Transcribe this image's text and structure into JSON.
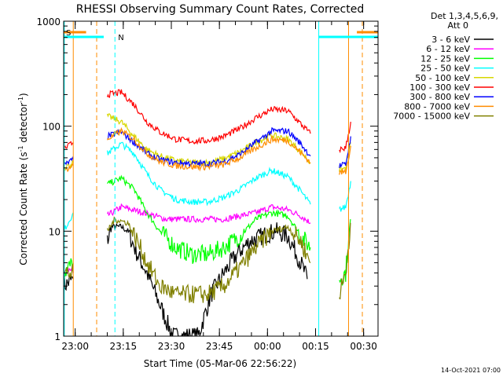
{
  "chart_data": {
    "type": "line",
    "title": "RHESSI Observing Summary Count Rates, Corrected",
    "xlabel": "Start Time (05-Mar-06 22:56:22)",
    "ylabel_parts": [
      "Corrected Count Rate (s",
      "-1",
      " detector",
      "-1",
      ")"
    ],
    "yscale": "log",
    "ylim": [
      1,
      1000
    ],
    "xlim": [
      "22:56:22",
      "00:34:30"
    ],
    "y_ticks": [
      {
        "label": "1",
        "value": 1
      },
      {
        "label": "10",
        "value": 10
      },
      {
        "label": "100",
        "value": 100
      },
      {
        "label": "1000",
        "value": 1000
      }
    ],
    "x_ticks": [
      {
        "label": "23:00",
        "t": 3.6
      },
      {
        "label": "23:15",
        "t": 18.6
      },
      {
        "label": "23:30",
        "t": 33.6
      },
      {
        "label": "23:45",
        "t": 48.6
      },
      {
        "label": "00:00",
        "t": 63.6
      },
      {
        "label": "00:15",
        "t": 78.6
      },
      {
        "label": "00:30",
        "t": 93.6
      }
    ],
    "x_unit_note": "t = minutes after 22:56:22",
    "legend_header": [
      "Det 1,3,4,5,6,9,",
      "Att 0"
    ],
    "legend_position": "right, outside plot",
    "series": [
      {
        "name": "3 - 6 keV",
        "color": "#000000",
        "x": [
          0,
          3,
          3.1,
          10,
          13.6,
          15,
          18,
          20,
          23,
          26,
          30,
          34,
          38,
          42,
          46,
          50,
          54,
          58,
          62,
          66,
          70,
          74,
          76,
          77.5,
          78,
          79.9,
          80,
          85,
          87,
          89,
          89.6,
          90
        ],
        "y": [
          3,
          3.5,
          null,
          null,
          8,
          11,
          11,
          10,
          6,
          4,
          2,
          1,
          1,
          1,
          2.5,
          4,
          6,
          8,
          9,
          10,
          9,
          5,
          3.5,
          null,
          null,
          null,
          null,
          null,
          null,
          null,
          null,
          null
        ]
      },
      {
        "name": "6 - 12 keV",
        "color": "#ff00ff",
        "x": [
          0,
          3,
          3.1,
          10,
          13.6,
          18,
          25,
          32,
          40,
          45,
          50,
          55,
          60,
          65,
          70,
          74,
          77,
          80,
          82,
          86,
          88,
          89.6,
          91
        ],
        "y": [
          4,
          4,
          null,
          null,
          14,
          17,
          15,
          13,
          13,
          13,
          13,
          14,
          15,
          17,
          16,
          14,
          12,
          null,
          null,
          null,
          null,
          3,
          null
        ]
      },
      {
        "name": "12 - 25 keV",
        "color": "#00ff00",
        "x": [
          0,
          3,
          3.1,
          10,
          13.6,
          18,
          22,
          26,
          30,
          35,
          40,
          45,
          50,
          55,
          60,
          65,
          70,
          74,
          77,
          80,
          82,
          86,
          88,
          89.5,
          91
        ],
        "y": [
          4,
          5,
          null,
          null,
          28,
          32,
          25,
          15,
          10,
          7,
          6,
          6,
          7,
          9,
          13,
          15,
          14,
          9,
          7,
          null,
          null,
          3.5,
          4,
          13,
          null
        ]
      },
      {
        "name": "25 - 50 keV",
        "color": "#00ffff",
        "x": [
          0,
          3,
          3.1,
          10,
          13.6,
          18,
          22,
          26,
          30,
          35,
          40,
          45,
          50,
          55,
          60,
          65,
          70,
          74,
          77,
          80,
          82,
          86,
          88,
          89.6,
          91
        ],
        "y": [
          10,
          15,
          null,
          null,
          55,
          68,
          55,
          35,
          25,
          20,
          19,
          19,
          21,
          25,
          32,
          38,
          33,
          24,
          18,
          null,
          null,
          16,
          17,
          30,
          null
        ]
      },
      {
        "name": "50 - 100 keV",
        "color": "#d7d700",
        "x": [
          0,
          3,
          3.1,
          10,
          13.6,
          18,
          22,
          26,
          30,
          35,
          40,
          45,
          50,
          55,
          60,
          65,
          70,
          74,
          77,
          80,
          82,
          86,
          88,
          89.6,
          91
        ],
        "y": [
          40,
          45,
          null,
          null,
          125,
          110,
          80,
          60,
          52,
          47,
          45,
          45,
          49,
          57,
          70,
          82,
          75,
          57,
          45,
          null,
          null,
          38,
          40,
          70,
          null
        ]
      },
      {
        "name": "100 - 300 keV",
        "color": "#ff0000",
        "x": [
          0,
          3,
          3.1,
          10,
          13.6,
          18,
          22,
          26,
          30,
          35,
          40,
          45,
          50,
          55,
          60,
          65,
          70,
          74,
          77,
          80,
          82,
          86,
          88,
          89.6,
          91
        ],
        "y": [
          60,
          70,
          null,
          null,
          200,
          210,
          160,
          110,
          88,
          75,
          72,
          73,
          80,
          95,
          120,
          145,
          140,
          105,
          85,
          null,
          null,
          60,
          62,
          110,
          null
        ]
      },
      {
        "name": "300 - 800 keV",
        "color": "#0000ff",
        "x": [
          0,
          3,
          3.1,
          10,
          13.6,
          18,
          22,
          26,
          30,
          35,
          40,
          45,
          50,
          55,
          60,
          65,
          70,
          74,
          77,
          80,
          82,
          86,
          88,
          89.6,
          91
        ],
        "y": [
          42,
          48,
          null,
          null,
          80,
          88,
          70,
          55,
          48,
          45,
          44,
          44,
          46,
          54,
          70,
          90,
          90,
          68,
          52,
          null,
          null,
          42,
          43,
          80,
          null
        ]
      },
      {
        "name": "800 - 7000 keV",
        "color": "#ff8c00",
        "x": [
          0,
          3,
          3.1,
          10,
          13.6,
          18,
          22,
          26,
          30,
          35,
          40,
          45,
          50,
          55,
          60,
          65,
          70,
          74,
          77,
          80,
          82,
          86,
          88,
          89.6,
          91
        ],
        "y": [
          38,
          42,
          null,
          null,
          75,
          90,
          75,
          55,
          46,
          42,
          41,
          41,
          43,
          50,
          62,
          75,
          73,
          56,
          45,
          null,
          null,
          36,
          37,
          65,
          null
        ]
      },
      {
        "name": "7000 - 15000 keV",
        "color": "#808000",
        "x": [
          0,
          3,
          3.1,
          10,
          13.6,
          16,
          20,
          23,
          26,
          30,
          35,
          40,
          45,
          50,
          55,
          60,
          65,
          70,
          74,
          77,
          80,
          82,
          86,
          88,
          89.5,
          91
        ],
        "y": [
          4,
          4,
          null,
          null,
          10,
          13,
          12,
          8,
          5,
          3,
          2.5,
          2.5,
          2.5,
          3,
          4.5,
          7,
          10,
          11,
          8,
          5,
          null,
          null,
          2.5,
          4,
          12,
          null
        ]
      }
    ],
    "gap_markers": [
      {
        "label": "S",
        "color": "#ff8c00",
        "bar_start": 0,
        "bar_end": 7
      },
      {
        "label": "N",
        "color": "#00ffff",
        "bar_start": 0,
        "bar_end": 12.5
      }
    ],
    "end_markers": [
      {
        "color": "#00ffff",
        "bar_start": 79.5,
        "bar_end": 98
      },
      {
        "color": "#ff8c00",
        "bar_start": 91.5,
        "bar_end": 98
      }
    ],
    "vlines": [
      {
        "t": 3.0,
        "color": "#ff8c00",
        "style": "solid"
      },
      {
        "t": 0.2,
        "color": "#00ffff",
        "style": "solid"
      },
      {
        "t": 10.3,
        "color": "#ff8c00",
        "style": "dashed"
      },
      {
        "t": 16.0,
        "color": "#00ffff",
        "style": "dashed"
      },
      {
        "t": 79.6,
        "color": "#00ffff",
        "style": "solid"
      },
      {
        "t": 88.9,
        "color": "#ff8c00",
        "style": "solid"
      },
      {
        "t": 93.2,
        "color": "#ff8c00",
        "style": "dashed"
      }
    ],
    "grid": false
  },
  "footer": {
    "timestamp": "14-Oct-2021 07:00"
  }
}
